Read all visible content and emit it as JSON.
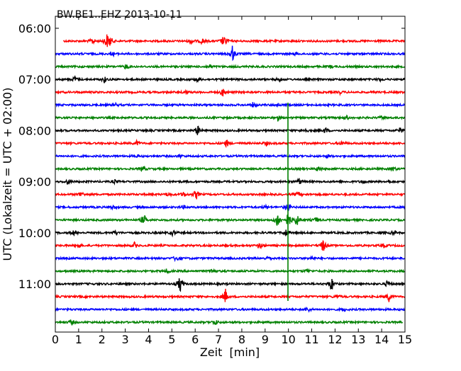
{
  "chart_data": {
    "type": "line",
    "title": "BW.BE1..EHZ 2013-10-11",
    "xlabel": "Zeit  [min]",
    "ylabel": "UTC (Lokalzeit = UTC + 02:00)",
    "xlim": [
      0,
      15
    ],
    "x_ticks": [
      "0",
      "1",
      "2",
      "3",
      "4",
      "5",
      "6",
      "7",
      "8",
      "9",
      "10",
      "11",
      "12",
      "13",
      "14",
      "15"
    ],
    "y_ticks": [
      "06:00",
      "07:00",
      "08:00",
      "09:00",
      "10:00",
      "11:00"
    ],
    "grid": false,
    "legend": "none",
    "color_cycle": [
      "#ff0000",
      "#0000ff",
      "#008000",
      "#000000"
    ],
    "rows": [
      {
        "start": "06:15",
        "x_start": 0.35,
        "events": [
          {
            "x": 1.6,
            "a": 0.35
          },
          {
            "x": 2.2,
            "a": 0.75
          },
          {
            "x": 2.35,
            "a": 0.5
          },
          {
            "x": 5.85,
            "a": 0.35
          },
          {
            "x": 6.3,
            "a": 0.3
          },
          {
            "x": 7.2,
            "a": 0.45
          },
          {
            "x": 7.35,
            "a": 0.3
          }
        ]
      },
      {
        "start": "06:30",
        "events": [
          {
            "x": 2.5,
            "a": 0.15
          },
          {
            "x": 7.6,
            "a": 0.85
          },
          {
            "x": 10.3,
            "a": 0.15
          }
        ]
      },
      {
        "start": "06:45",
        "events": [
          {
            "x": 3.05,
            "a": 0.3
          },
          {
            "x": 6.6,
            "a": 0.3
          },
          {
            "x": 11.8,
            "a": 0.15
          }
        ]
      },
      {
        "start": "07:00",
        "events": [
          {
            "x": 0.85,
            "a": 0.3
          },
          {
            "x": 2.1,
            "a": 0.3
          },
          {
            "x": 6.1,
            "a": 0.25
          },
          {
            "x": 9.6,
            "a": 0.2
          },
          {
            "x": 13.9,
            "a": 0.15
          }
        ]
      },
      {
        "start": "07:15",
        "events": [
          {
            "x": 5.6,
            "a": 0.2
          },
          {
            "x": 7.2,
            "a": 0.45
          },
          {
            "x": 12.2,
            "a": 0.15
          }
        ]
      },
      {
        "start": "07:30",
        "events": [
          {
            "x": 2.6,
            "a": 0.15
          },
          {
            "x": 8.5,
            "a": 0.3
          },
          {
            "x": 9.55,
            "a": 0.15
          }
        ]
      },
      {
        "start": "07:45",
        "events": [
          {
            "x": 9.55,
            "a": 0.3
          },
          {
            "x": 12.5,
            "a": 0.2
          },
          {
            "x": 14.0,
            "a": 0.15
          }
        ]
      },
      {
        "start": "08:00",
        "events": [
          {
            "x": 6.1,
            "a": 0.55
          },
          {
            "x": 10.7,
            "a": 0.3
          },
          {
            "x": 11.6,
            "a": 0.3
          },
          {
            "x": 14.8,
            "a": 0.3
          }
        ]
      },
      {
        "start": "08:15",
        "events": [
          {
            "x": 3.5,
            "a": 0.25
          },
          {
            "x": 7.35,
            "a": 0.4
          },
          {
            "x": 9.05,
            "a": 0.2
          },
          {
            "x": 12.3,
            "a": 0.2
          }
        ]
      },
      {
        "start": "08:30",
        "events": [
          {
            "x": 3.5,
            "a": 0.15
          },
          {
            "x": 5.35,
            "a": 0.2
          },
          {
            "x": 11.7,
            "a": 0.15
          }
        ]
      },
      {
        "start": "08:45",
        "events": [
          {
            "x": 3.75,
            "a": 0.3
          },
          {
            "x": 11.3,
            "a": 0.3
          },
          {
            "x": 14.5,
            "a": 0.25
          }
        ]
      },
      {
        "start": "09:00",
        "events": [
          {
            "x": 0.55,
            "a": 0.35
          },
          {
            "x": 2.55,
            "a": 0.2
          },
          {
            "x": 10.45,
            "a": 0.35
          },
          {
            "x": 13.2,
            "a": 0.2
          },
          {
            "x": 14.3,
            "a": 0.2
          }
        ]
      },
      {
        "start": "09:15",
        "events": [
          {
            "x": 1.1,
            "a": 0.35
          },
          {
            "x": 4.85,
            "a": 0.25
          },
          {
            "x": 5.5,
            "a": 0.25
          },
          {
            "x": 6.05,
            "a": 0.5
          },
          {
            "x": 10.4,
            "a": 0.3
          }
        ]
      },
      {
        "start": "09:30",
        "events": [
          {
            "x": 2.45,
            "a": 0.2
          },
          {
            "x": 5.5,
            "a": 0.15
          },
          {
            "x": 9.0,
            "a": 0.2
          },
          {
            "x": 9.95,
            "a": 0.6
          }
        ]
      },
      {
        "start": "09:45",
        "events": [
          {
            "x": 3.8,
            "a": 0.6
          },
          {
            "x": 9.55,
            "a": 1.0
          },
          {
            "x": 10.0,
            "a": 1.0
          },
          {
            "x": 10.35,
            "a": 0.7
          },
          {
            "x": 11.2,
            "a": 0.3
          }
        ]
      },
      {
        "start": "10:00",
        "events": [
          {
            "x": 0.8,
            "a": 0.3
          },
          {
            "x": 2.6,
            "a": 0.25
          },
          {
            "x": 5.05,
            "a": 0.3
          },
          {
            "x": 9.9,
            "a": 0.4
          },
          {
            "x": 14.5,
            "a": 0.2
          }
        ]
      },
      {
        "start": "10:15",
        "events": [
          {
            "x": 1.0,
            "a": 0.25
          },
          {
            "x": 3.4,
            "a": 0.3
          },
          {
            "x": 8.8,
            "a": 0.3
          },
          {
            "x": 11.5,
            "a": 0.75
          },
          {
            "x": 14.1,
            "a": 0.2
          }
        ]
      },
      {
        "start": "10:30",
        "events": [
          {
            "x": 5.2,
            "a": 0.4
          },
          {
            "x": 9.15,
            "a": 0.3
          },
          {
            "x": 11.0,
            "a": 0.2
          }
        ]
      },
      {
        "start": "10:45",
        "events": [
          {
            "x": 4.8,
            "a": 0.25
          },
          {
            "x": 6.75,
            "a": 0.35
          },
          {
            "x": 10.8,
            "a": 0.2
          }
        ]
      },
      {
        "start": "11:00",
        "events": [
          {
            "x": 5.35,
            "a": 0.9
          },
          {
            "x": 11.85,
            "a": 0.8
          },
          {
            "x": 14.25,
            "a": 0.35
          }
        ]
      },
      {
        "start": "11:15",
        "events": [
          {
            "x": 7.3,
            "a": 0.75
          },
          {
            "x": 12.1,
            "a": 0.2
          },
          {
            "x": 14.3,
            "a": 0.55
          }
        ]
      },
      {
        "start": "11:30",
        "events": [
          {
            "x": 10.85,
            "a": 0.25
          },
          {
            "x": 12.4,
            "a": 0.15
          }
        ]
      },
      {
        "start": "11:45",
        "x_end": 14.9,
        "events": [
          {
            "x": 0.7,
            "a": 0.3
          },
          {
            "x": 6.85,
            "a": 0.3
          }
        ]
      }
    ],
    "vertical_spike": {
      "x": 9.98,
      "color": "#008000"
    }
  }
}
